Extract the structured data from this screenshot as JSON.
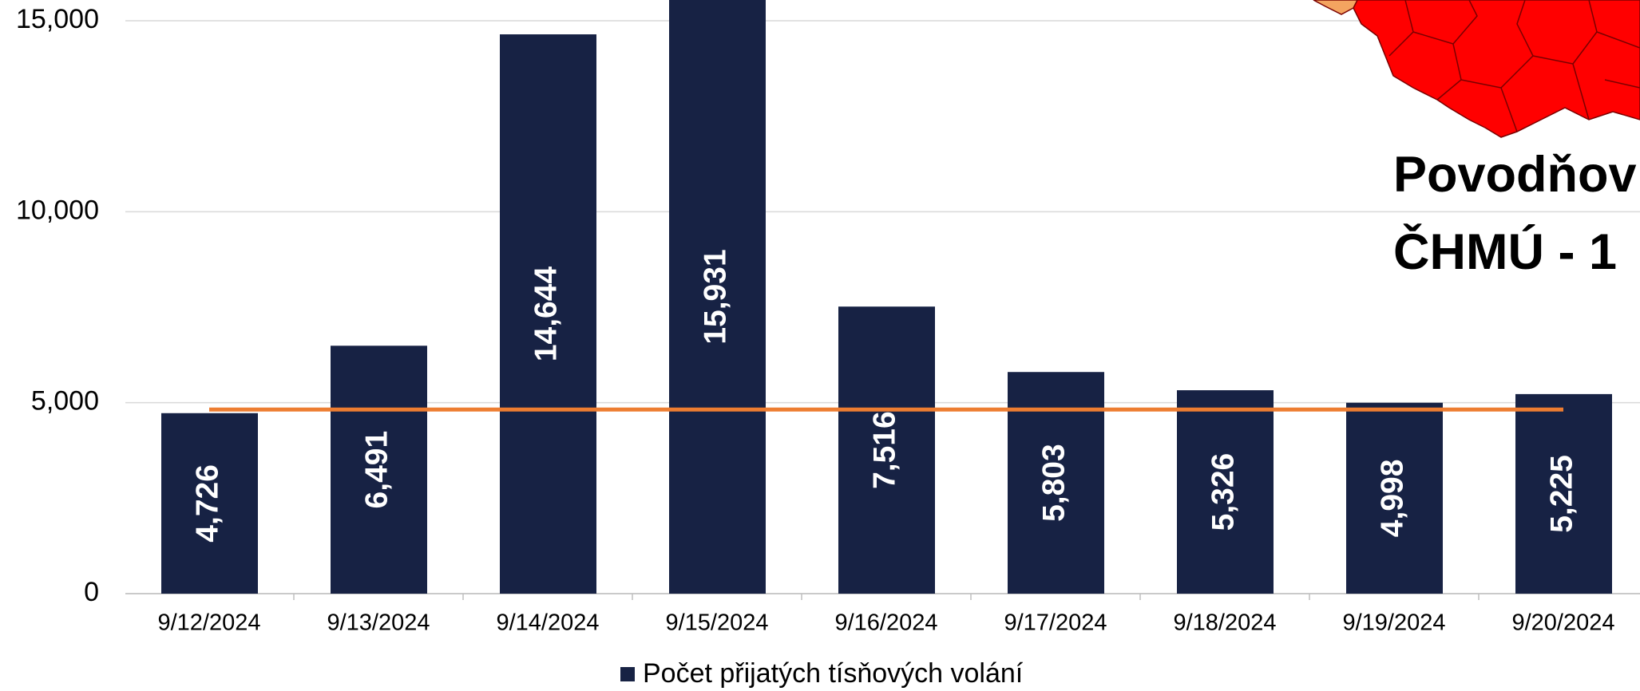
{
  "chart_data": {
    "type": "bar",
    "categories": [
      "9/12/2024",
      "9/13/2024",
      "9/14/2024",
      "9/15/2024",
      "9/16/2024",
      "9/17/2024",
      "9/18/2024",
      "9/19/2024",
      "9/20/2024"
    ],
    "series": [
      {
        "name": "Počet přijatých tísňových volání",
        "color": "#172244",
        "values": [
          4726,
          6491,
          14644,
          15931,
          7516,
          5803,
          5326,
          4998,
          5225
        ],
        "value_labels": [
          "4,726",
          "6,491",
          "14,644",
          "15,931",
          "7,516",
          "5,803",
          "5,326",
          "4,998",
          "5,225"
        ]
      }
    ],
    "reference_line": {
      "value": 4820,
      "color": "#ed7d31"
    },
    "ylim": [
      0,
      15000
    ],
    "yticks": [
      0,
      {
        "value": 5000,
        "label": "5,000"
      },
      {
        "value": 10000,
        "label": "10,000"
      },
      {
        "value": 15000,
        "label": "15,000"
      }
    ],
    "grid": true,
    "legend": "bottom",
    "overlay_text": [
      "Povodňov",
      "ČHMÚ -  1"
    ]
  }
}
